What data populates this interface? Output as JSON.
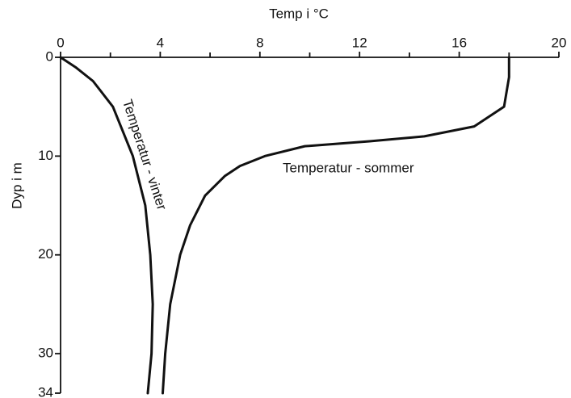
{
  "chart_data": {
    "type": "line",
    "x_label": "Temp i °C",
    "y_label": "Dyp i m",
    "xlim": [
      0,
      20
    ],
    "xticks": [
      0,
      4,
      8,
      12,
      16,
      20
    ],
    "xminor_ticks": [
      2,
      6,
      10,
      14,
      18
    ],
    "ylim": [
      0,
      34
    ],
    "yticks": [
      0,
      10,
      20,
      30,
      34
    ],
    "y_inverted": true,
    "x_axis_top": true,
    "series": [
      {
        "name": "Temperatur - vinter",
        "color": "#111111",
        "x": [
          0,
          0.6,
          1.3,
          2.1,
          2.9,
          3.4,
          3.6,
          3.7,
          3.65,
          3.5
        ],
        "values": [
          0,
          1,
          2.4,
          5,
          10,
          15,
          20,
          25,
          30,
          34
        ]
      },
      {
        "name": "Temperatur - sommer",
        "color": "#111111",
        "x": [
          18,
          18,
          17.8,
          16.6,
          14.6,
          12.4,
          9.8,
          8.2,
          7.2,
          6.6,
          5.8,
          5.2,
          4.8,
          4.4,
          4.2,
          4.1
        ],
        "values": [
          0,
          2,
          5,
          7,
          8,
          8.5,
          9,
          10,
          11,
          12,
          14,
          17,
          20,
          25,
          30,
          34
        ]
      }
    ]
  }
}
